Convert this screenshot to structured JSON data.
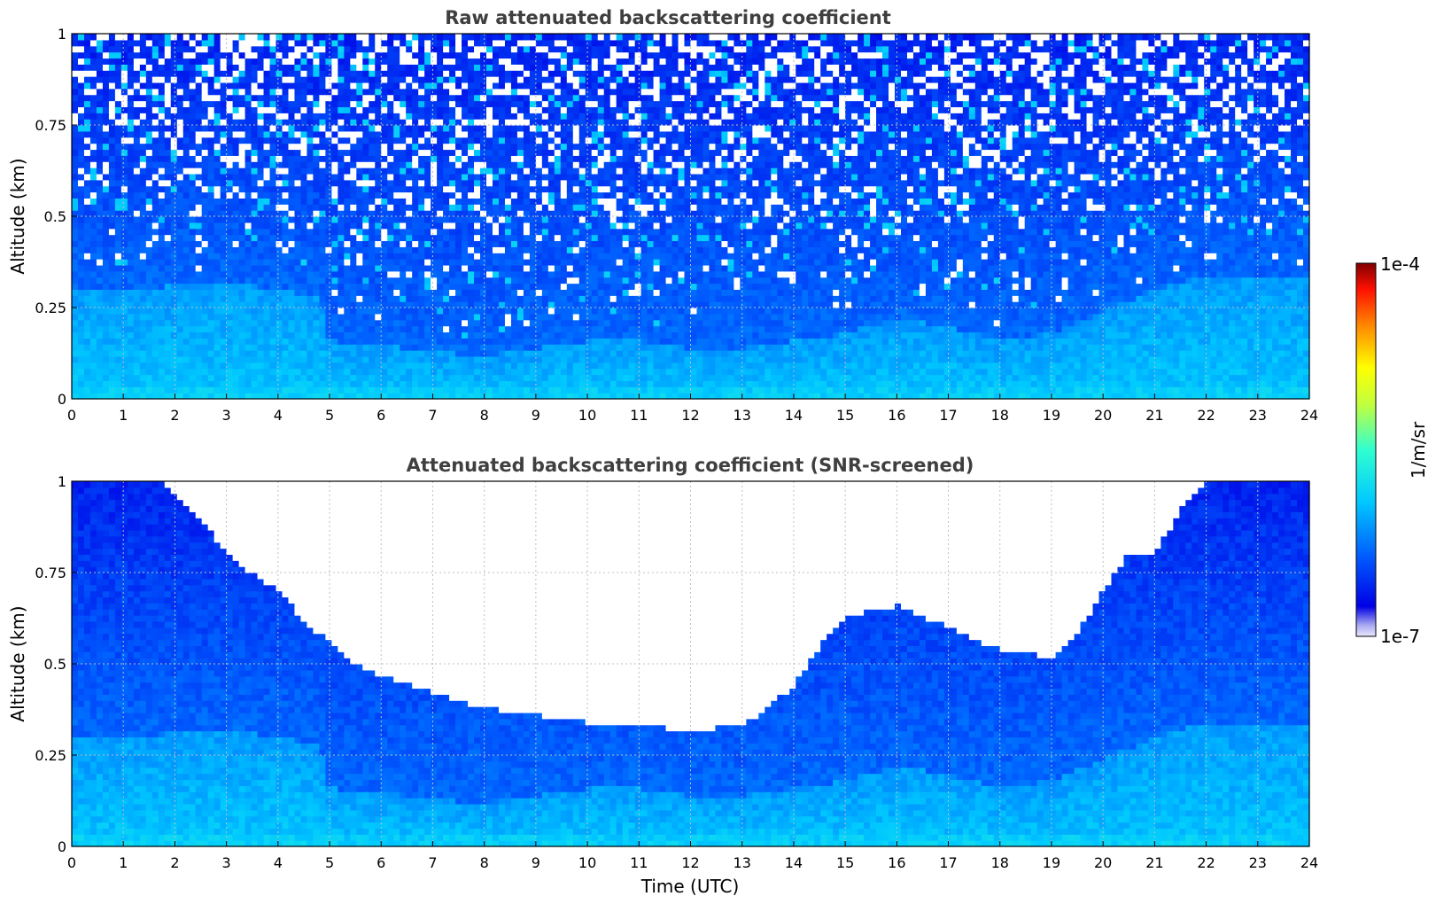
{
  "chart_data": [
    {
      "type": "heatmap",
      "title": "Raw attenuated backscattering coefficient",
      "xlabel": "",
      "ylabel": "Altitude (km)",
      "xlim": [
        0,
        24
      ],
      "ylim": [
        0,
        1
      ],
      "x_ticks": [
        "0",
        "1",
        "2",
        "3",
        "4",
        "5",
        "6",
        "7",
        "8",
        "9",
        "10",
        "11",
        "12",
        "13",
        "14",
        "15",
        "16",
        "17",
        "18",
        "19",
        "20",
        "21",
        "22",
        "23",
        "24"
      ],
      "y_ticks": [
        "0",
        "0.25",
        "0.5",
        "0.75",
        "1"
      ],
      "y_tick_values": [
        0,
        0.25,
        0.5,
        0.75,
        1
      ],
      "grid": true,
      "screened": false,
      "colorbar": {
        "min": "1e-7",
        "max": "1e-4",
        "label": "1/m/sr",
        "scale": "log",
        "colormap": "jet"
      },
      "boundary_layer_top_km": [
        [
          0,
          0.3
        ],
        [
          1,
          0.3
        ],
        [
          2,
          0.31
        ],
        [
          3,
          0.32
        ],
        [
          4,
          0.3
        ],
        [
          4.8,
          0.28
        ],
        [
          5,
          0.16
        ],
        [
          6,
          0.15
        ],
        [
          7,
          0.13
        ],
        [
          8,
          0.12
        ],
        [
          9,
          0.14
        ],
        [
          10,
          0.16
        ],
        [
          11,
          0.16
        ],
        [
          12,
          0.14
        ],
        [
          13,
          0.14
        ],
        [
          14,
          0.16
        ],
        [
          15,
          0.18
        ],
        [
          16,
          0.22
        ],
        [
          17,
          0.2
        ],
        [
          18,
          0.16
        ],
        [
          19,
          0.18
        ],
        [
          20,
          0.24
        ],
        [
          21,
          0.3
        ],
        [
          22,
          0.34
        ],
        [
          23,
          0.34
        ],
        [
          24,
          0.34
        ]
      ]
    },
    {
      "type": "heatmap",
      "title": "Attenuated backscattering coefficient (SNR-screened)",
      "xlabel": "Time (UTC)",
      "ylabel": "Altitude (km)",
      "xlim": [
        0,
        24
      ],
      "ylim": [
        0,
        1
      ],
      "x_ticks": [
        "0",
        "1",
        "2",
        "3",
        "4",
        "5",
        "6",
        "7",
        "8",
        "9",
        "10",
        "11",
        "12",
        "13",
        "14",
        "15",
        "16",
        "17",
        "18",
        "19",
        "20",
        "21",
        "22",
        "23",
        "24"
      ],
      "y_ticks": [
        "0",
        "0.25",
        "0.5",
        "0.75",
        "1"
      ],
      "y_tick_values": [
        0,
        0.25,
        0.5,
        0.75,
        1
      ],
      "grid": true,
      "screened": true,
      "colorbar": {
        "min": "1e-7",
        "max": "1e-4",
        "label": "1/m/sr",
        "scale": "log",
        "colormap": "jet"
      },
      "boundary_layer_top_km": [
        [
          0,
          0.3
        ],
        [
          1,
          0.3
        ],
        [
          2,
          0.31
        ],
        [
          3,
          0.32
        ],
        [
          4,
          0.3
        ],
        [
          4.8,
          0.28
        ],
        [
          5,
          0.16
        ],
        [
          6,
          0.15
        ],
        [
          7,
          0.13
        ],
        [
          8,
          0.12
        ],
        [
          9,
          0.14
        ],
        [
          10,
          0.16
        ],
        [
          11,
          0.16
        ],
        [
          12,
          0.14
        ],
        [
          13,
          0.14
        ],
        [
          14,
          0.16
        ],
        [
          15,
          0.18
        ],
        [
          16,
          0.22
        ],
        [
          17,
          0.2
        ],
        [
          18,
          0.16
        ],
        [
          19,
          0.18
        ],
        [
          20,
          0.24
        ],
        [
          21,
          0.3
        ],
        [
          22,
          0.34
        ],
        [
          23,
          0.34
        ],
        [
          24,
          0.34
        ]
      ],
      "signal_top_km": [
        [
          0,
          1.0
        ],
        [
          1.8,
          1.0
        ],
        [
          2.2,
          0.94
        ],
        [
          2.6,
          0.88
        ],
        [
          3,
          0.8
        ],
        [
          3.5,
          0.75
        ],
        [
          4,
          0.7
        ],
        [
          4.5,
          0.62
        ],
        [
          5,
          0.56
        ],
        [
          5.5,
          0.5
        ],
        [
          6,
          0.47
        ],
        [
          7,
          0.42
        ],
        [
          8,
          0.38
        ],
        [
          9,
          0.36
        ],
        [
          10,
          0.34
        ],
        [
          11,
          0.33
        ],
        [
          12,
          0.32
        ],
        [
          13,
          0.33
        ],
        [
          13.5,
          0.38
        ],
        [
          14,
          0.44
        ],
        [
          14.5,
          0.55
        ],
        [
          15,
          0.63
        ],
        [
          16,
          0.66
        ],
        [
          17,
          0.6
        ],
        [
          18,
          0.54
        ],
        [
          19,
          0.52
        ],
        [
          19.5,
          0.58
        ],
        [
          20,
          0.7
        ],
        [
          20.5,
          0.8
        ],
        [
          21,
          0.8
        ],
        [
          21.5,
          0.92
        ],
        [
          22,
          1.0
        ],
        [
          24,
          1.0
        ]
      ]
    }
  ],
  "colorbar": {
    "max_label": "1e-4",
    "min_label": "1e-7",
    "label": "1/m/sr"
  }
}
